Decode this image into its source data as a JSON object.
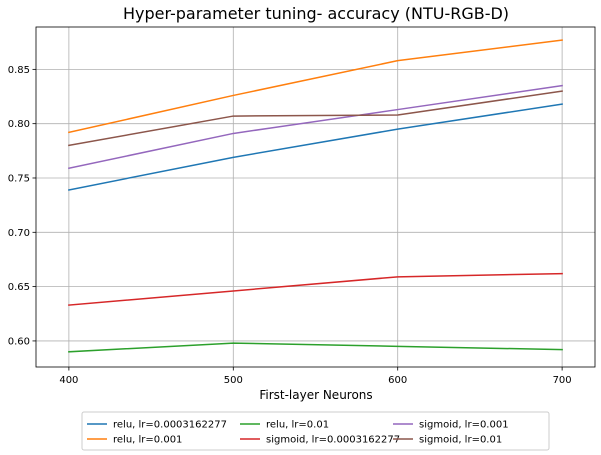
{
  "chart_data": {
    "type": "line",
    "title": "Hyper-parameter tuning- accuracy (NTU-RGB-D)",
    "xlabel": "First-layer Neurons",
    "ylabel": "",
    "x": [
      400,
      500,
      600,
      700
    ],
    "xticks": [
      "400",
      "500",
      "600",
      "700"
    ],
    "yticks": [
      "0.60",
      "0.65",
      "0.70",
      "0.75",
      "0.80",
      "0.85"
    ],
    "xlim": [
      380,
      720
    ],
    "ylim": [
      0.576,
      0.889
    ],
    "grid": true,
    "legend_position": "bottom-center",
    "series": [
      {
        "name": "relu, lr=0.0003162277",
        "color": "#1f77b4",
        "values": [
          0.739,
          0.769,
          0.795,
          0.818
        ]
      },
      {
        "name": "relu, lr=0.001",
        "color": "#ff7f0e",
        "values": [
          0.792,
          0.826,
          0.858,
          0.877
        ]
      },
      {
        "name": "relu, lr=0.01",
        "color": "#2ca02c",
        "values": [
          0.59,
          0.598,
          0.595,
          0.592
        ]
      },
      {
        "name": "sigmoid, lr=0.0003162277",
        "color": "#d62728",
        "values": [
          0.633,
          0.646,
          0.659,
          0.662
        ]
      },
      {
        "name": "sigmoid, lr=0.001",
        "color": "#9467bd",
        "values": [
          0.759,
          0.791,
          0.813,
          0.835
        ]
      },
      {
        "name": "sigmoid, lr=0.01",
        "color": "#8c564b",
        "values": [
          0.78,
          0.807,
          0.808,
          0.83
        ]
      }
    ]
  }
}
